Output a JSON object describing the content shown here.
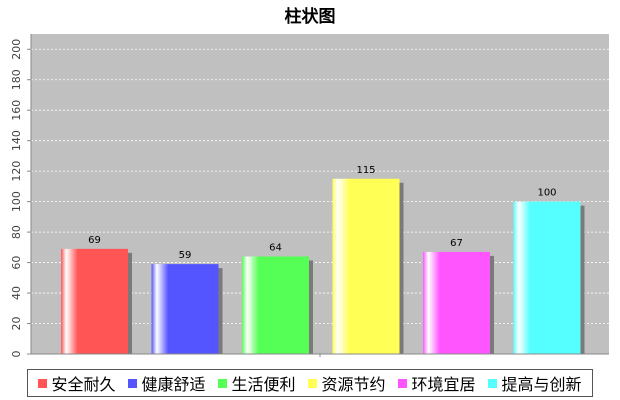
{
  "chart_data": {
    "type": "bar",
    "title": "柱状图",
    "categories": [
      "安全耐久",
      "健康舒适",
      "生活便利",
      "资源节约",
      "环境宜居",
      "提高与创新"
    ],
    "values": [
      69,
      59,
      64,
      115,
      67,
      100
    ],
    "colors": [
      "#ff5555",
      "#5555ff",
      "#55ff55",
      "#ffff55",
      "#ff55ff",
      "#55ffff"
    ],
    "ylim": [
      0,
      210
    ],
    "yticks": [
      0,
      20,
      40,
      60,
      80,
      100,
      120,
      140,
      160,
      180,
      200
    ],
    "grid": true,
    "plot_background": "#c0c0c0",
    "legend_position": "bottom"
  }
}
